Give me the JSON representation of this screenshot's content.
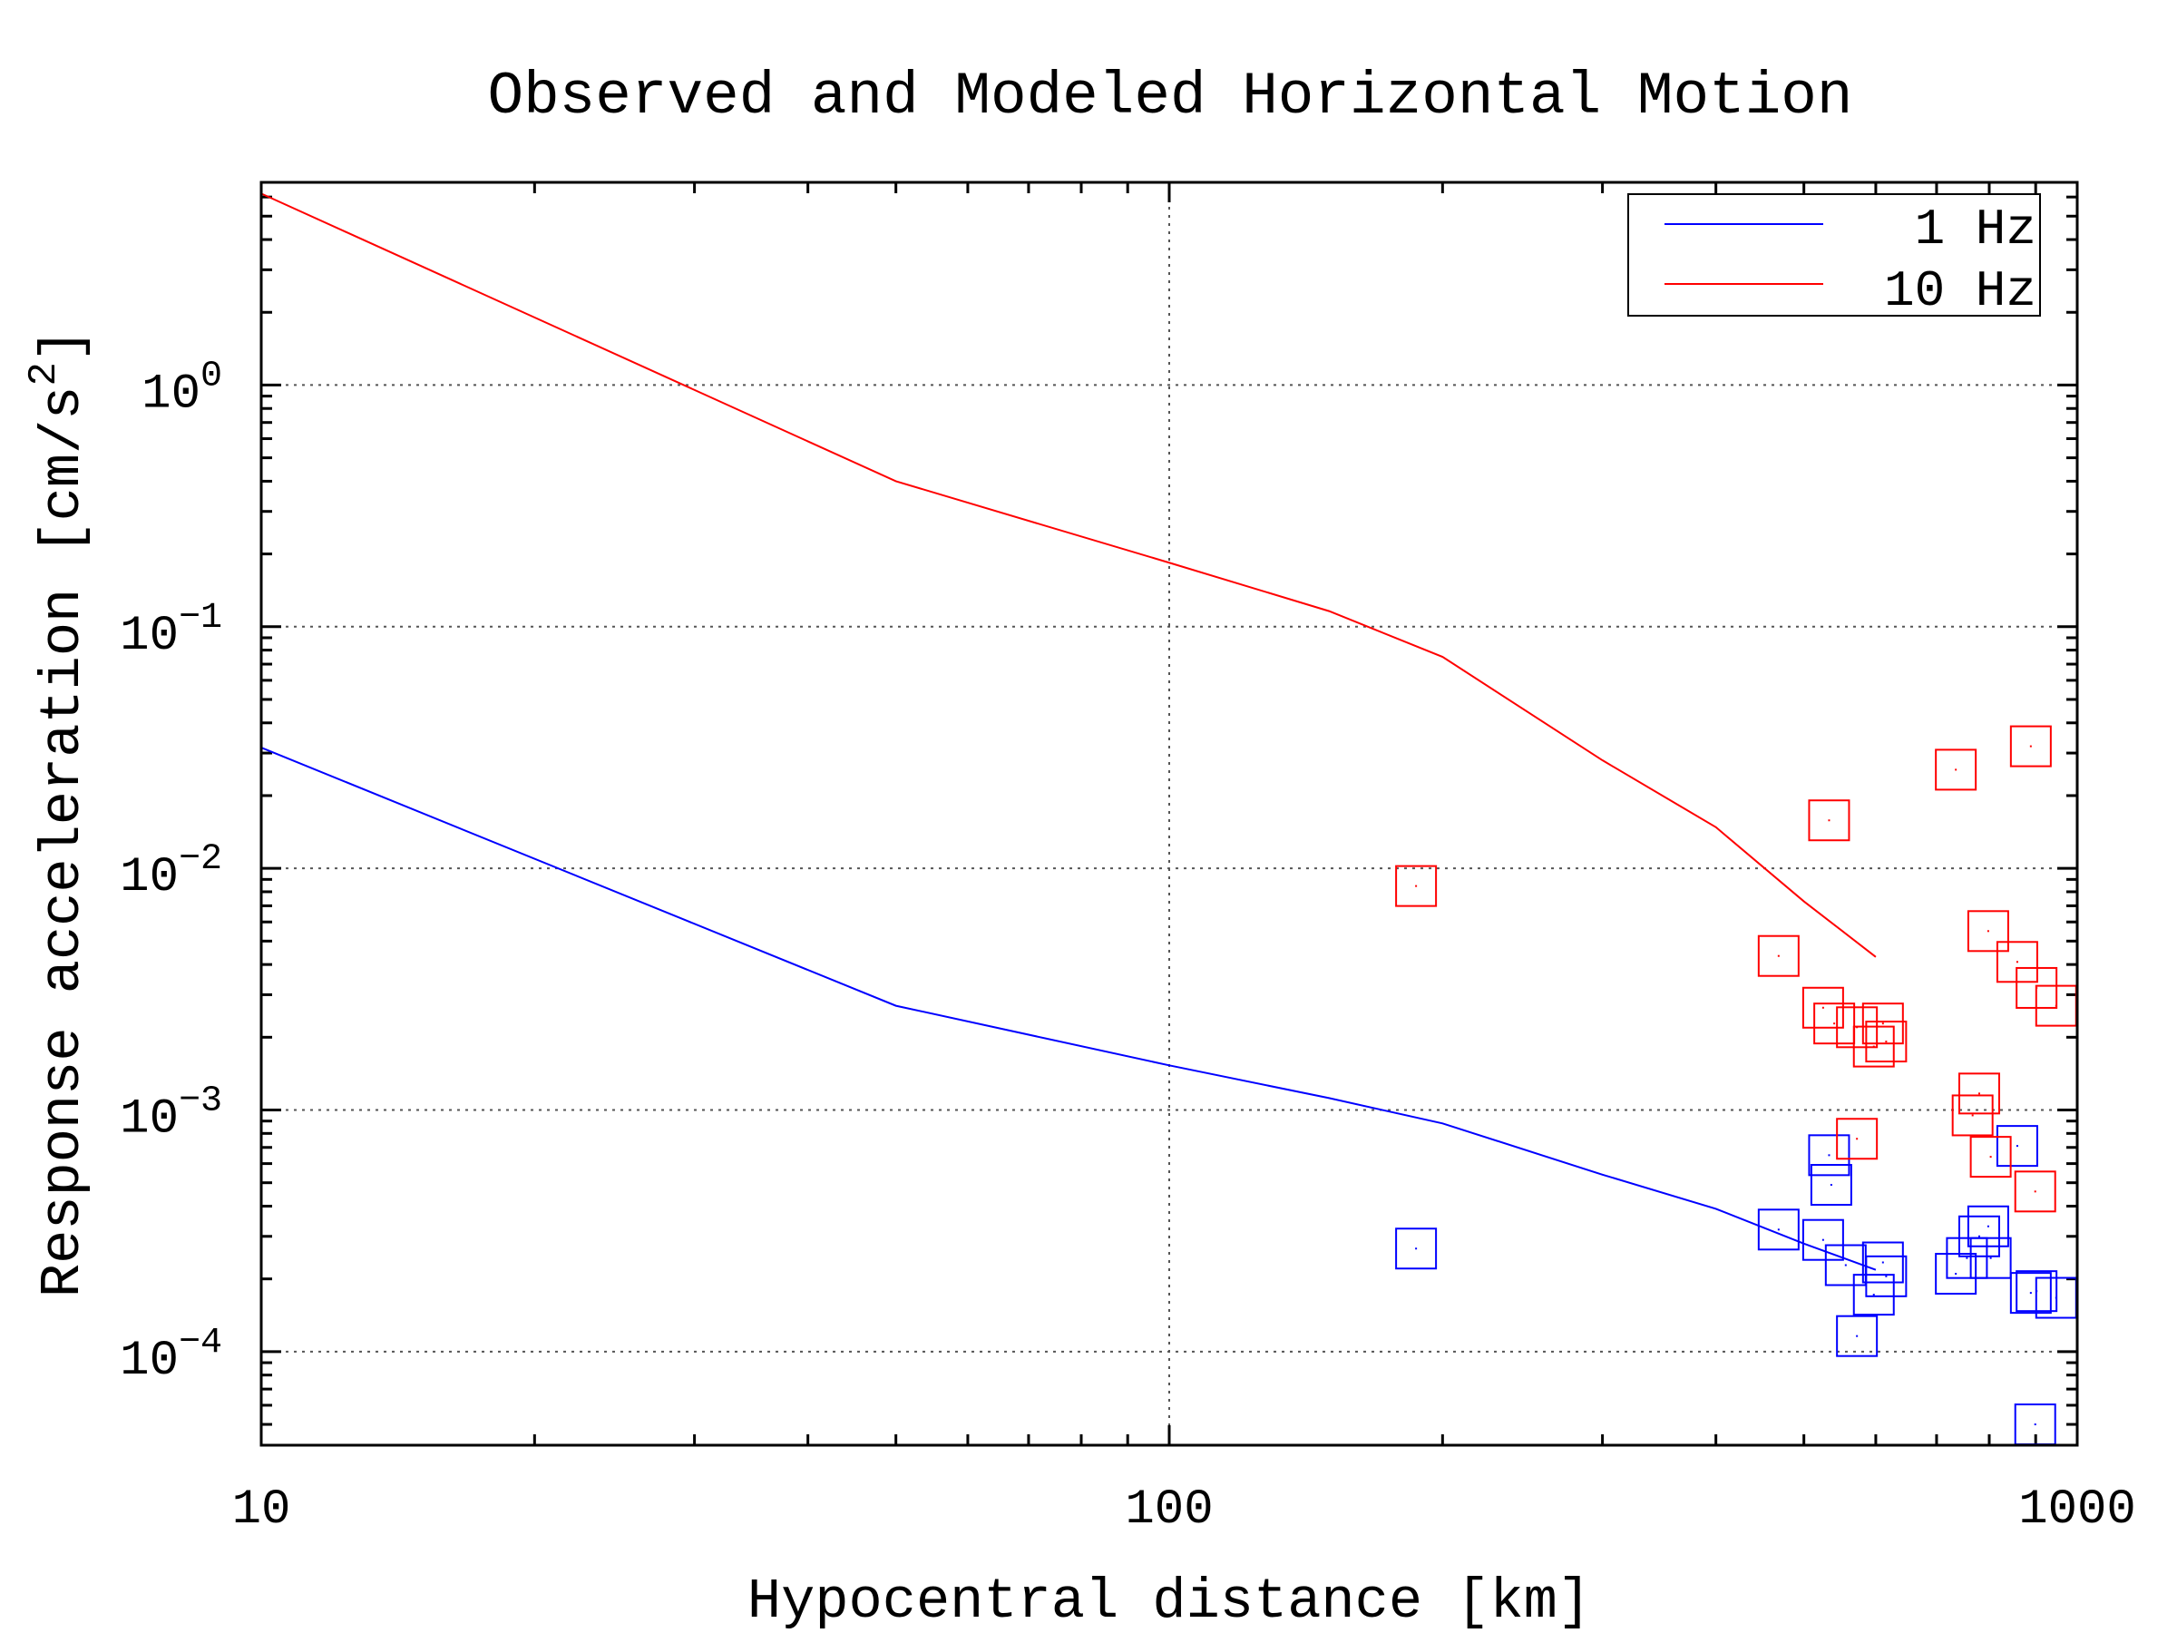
{
  "chart_data": {
    "type": "line",
    "title": "Observed and Modeled Horizontal Motion",
    "xlabel": "Hypocentral distance [km]",
    "ylabel": "Response acceleration [cm/s",
    "ylabel_sup": "2",
    "ylabel_end": "]",
    "xscale": "log",
    "yscale": "log",
    "xlim": [
      10,
      1000
    ],
    "ylim": [
      4.1e-05,
      6.9
    ],
    "grid": true,
    "legend_position": "top-right",
    "xticks": [
      {
        "value": 10,
        "label": "10"
      },
      {
        "value": 100,
        "label": "100"
      },
      {
        "value": 1000,
        "label": "1000"
      }
    ],
    "yticks": [
      {
        "value": 1,
        "base": "10",
        "exp": "0"
      },
      {
        "value": 0.1,
        "base": "10",
        "exp": "−1"
      },
      {
        "value": 0.01,
        "base": "10",
        "exp": "−2"
      },
      {
        "value": 0.001,
        "base": "10",
        "exp": "−3"
      },
      {
        "value": 0.0001,
        "base": "10",
        "exp": "−4"
      }
    ],
    "series": [
      {
        "name": "1 Hz",
        "color": "#0000ff",
        "model": {
          "x": [
            10,
            50,
            100,
            150,
            200,
            300,
            400,
            500,
            600
          ],
          "y": [
            0.0316,
            0.0027,
            0.00153,
            0.00112,
            0.00088,
            0.00054,
            0.00039,
            0.00028,
            0.000218
          ]
        },
        "observed": {
          "x": [
            187,
            533,
            536,
            469,
            525,
            556,
            611,
            616,
            597,
            572,
            859,
            798,
            780,
            756,
            803,
            735,
            889,
            902,
            948,
            899
          ],
          "y": [
            0.000267,
            0.00065,
            0.00049,
            0.00032,
            0.00029,
            0.000228,
            0.000234,
            0.000205,
            0.000172,
            0.000116,
            0.00071,
            0.00033,
            0.0003,
            0.000244,
            0.000244,
            0.00021,
            0.000175,
            0.000178,
            0.000167,
            5e-05
          ]
        }
      },
      {
        "name": "10 Hz",
        "color": "#ff0000",
        "model": {
          "x": [
            10,
            50,
            100,
            150,
            200,
            300,
            400,
            500,
            600
          ],
          "y": [
            6.2,
            0.4,
            0.184,
            0.116,
            0.075,
            0.028,
            0.0148,
            0.0073,
            0.0043
          ]
        },
        "observed": {
          "x": [
            187,
            469,
            533,
            735,
            889,
            798,
            859,
            902,
            948,
            525,
            540,
            572,
            611,
            616,
            597,
            780,
            767,
            803,
            572,
            899
          ],
          "y": [
            0.00845,
            0.00434,
            0.0158,
            0.0256,
            0.032,
            0.0055,
            0.0041,
            0.0032,
            0.0027,
            0.00265,
            0.00228,
            0.0022,
            0.00228,
            0.00192,
            0.00183,
            0.00117,
            0.00095,
            0.00064,
            0.00076,
            0.00046
          ]
        }
      }
    ]
  }
}
